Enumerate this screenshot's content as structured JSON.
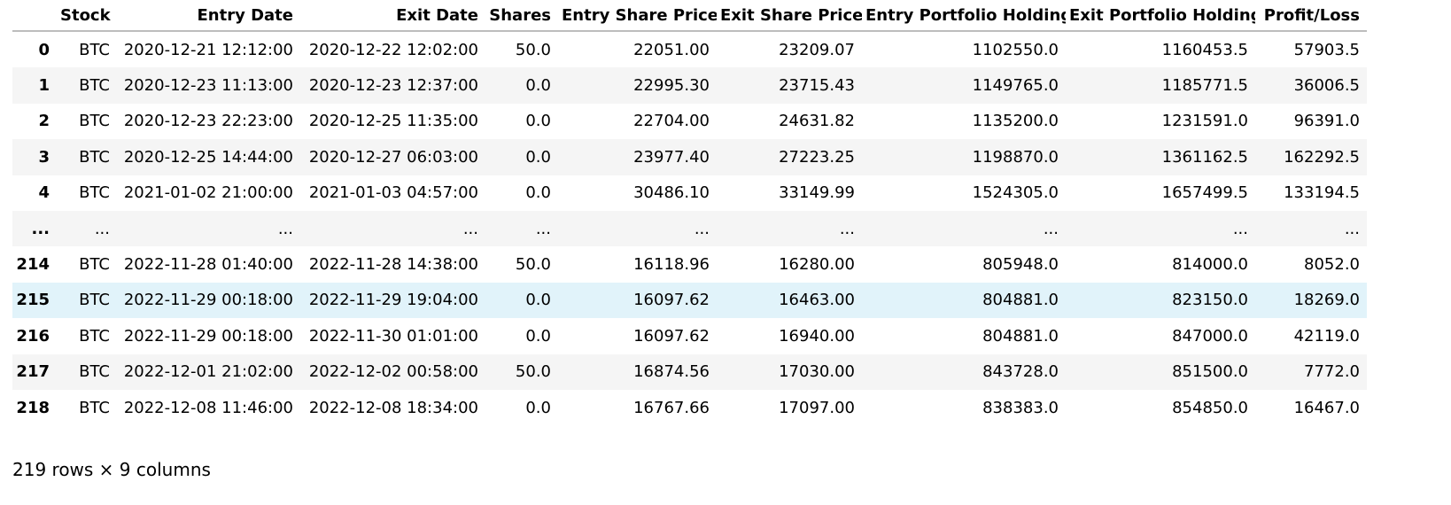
{
  "table": {
    "index_header": "",
    "columns": [
      "Stock",
      "Entry Date",
      "Exit Date",
      "Shares",
      "Entry Share Price",
      "Exit Share Price",
      "Entry Portfolio Holding",
      "Exit Portfolio Holding",
      "Profit/Loss"
    ],
    "rows": [
      {
        "index": "0",
        "cells": [
          "BTC",
          "2020-12-21 12:12:00",
          "2020-12-22 12:02:00",
          "50.0",
          "22051.00",
          "23209.07",
          "1102550.0",
          "1160453.5",
          "57903.5"
        ]
      },
      {
        "index": "1",
        "cells": [
          "BTC",
          "2020-12-23 11:13:00",
          "2020-12-23 12:37:00",
          "0.0",
          "22995.30",
          "23715.43",
          "1149765.0",
          "1185771.5",
          "36006.5"
        ]
      },
      {
        "index": "2",
        "cells": [
          "BTC",
          "2020-12-23 22:23:00",
          "2020-12-25 11:35:00",
          "0.0",
          "22704.00",
          "24631.82",
          "1135200.0",
          "1231591.0",
          "96391.0"
        ]
      },
      {
        "index": "3",
        "cells": [
          "BTC",
          "2020-12-25 14:44:00",
          "2020-12-27 06:03:00",
          "0.0",
          "23977.40",
          "27223.25",
          "1198870.0",
          "1361162.5",
          "162292.5"
        ]
      },
      {
        "index": "4",
        "cells": [
          "BTC",
          "2021-01-02 21:00:00",
          "2021-01-03 04:57:00",
          "0.0",
          "30486.10",
          "33149.99",
          "1524305.0",
          "1657499.5",
          "133194.5"
        ]
      },
      {
        "index": "...",
        "cells": [
          "...",
          "...",
          "...",
          "...",
          "...",
          "...",
          "...",
          "...",
          "..."
        ]
      },
      {
        "index": "214",
        "cells": [
          "BTC",
          "2022-11-28 01:40:00",
          "2022-11-28 14:38:00",
          "50.0",
          "16118.96",
          "16280.00",
          "805948.0",
          "814000.0",
          "8052.0"
        ]
      },
      {
        "index": "215",
        "cells": [
          "BTC",
          "2022-11-29 00:18:00",
          "2022-11-29 19:04:00",
          "0.0",
          "16097.62",
          "16463.00",
          "804881.0",
          "823150.0",
          "18269.0"
        ]
      },
      {
        "index": "216",
        "cells": [
          "BTC",
          "2022-11-29 00:18:00",
          "2022-11-30 01:01:00",
          "0.0",
          "16097.62",
          "16940.00",
          "804881.0",
          "847000.0",
          "42119.0"
        ]
      },
      {
        "index": "217",
        "cells": [
          "BTC",
          "2022-12-01 21:02:00",
          "2022-12-02 00:58:00",
          "50.0",
          "16874.56",
          "17030.00",
          "843728.0",
          "851500.0",
          "7772.0"
        ]
      },
      {
        "index": "218",
        "cells": [
          "BTC",
          "2022-12-08 11:46:00",
          "2022-12-08 18:34:00",
          "0.0",
          "16767.66",
          "17097.00",
          "838383.0",
          "854850.0",
          "16467.0"
        ]
      }
    ],
    "highlighted_row": "215"
  },
  "footer": {
    "summary": "219 rows × 9 columns"
  },
  "colors": {
    "even_row": "#f5f5f5",
    "hover_row": "#e1f3fa",
    "header_rule": "#bdbdbd"
  }
}
